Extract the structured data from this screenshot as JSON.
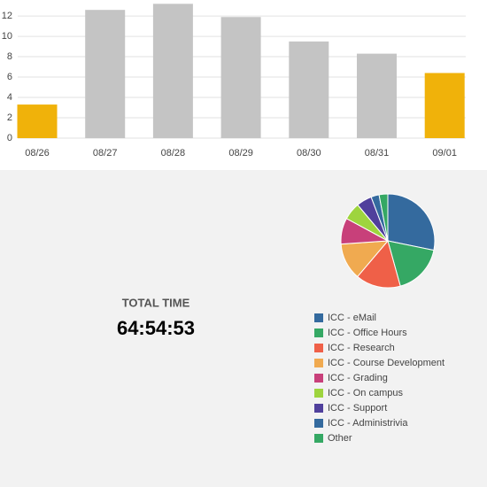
{
  "chart_data": [
    {
      "type": "bar",
      "categories": [
        "08/26",
        "08/27",
        "08/28",
        "08/29",
        "08/30",
        "08/31",
        "09/01"
      ],
      "values": [
        3.3,
        12.6,
        13.2,
        11.9,
        9.5,
        8.3,
        6.4
      ],
      "colors": [
        "#f0b20a",
        "#c4c4c4",
        "#c4c4c4",
        "#c4c4c4",
        "#c4c4c4",
        "#c4c4c4",
        "#f0b20a"
      ],
      "ylim": [
        0,
        13.4
      ],
      "yticks": [
        0,
        2,
        4,
        6,
        8,
        10,
        12
      ],
      "grid": true
    },
    {
      "type": "pie",
      "categories": [
        "ICC - eMail",
        "ICC - Office Hours",
        "ICC - Research",
        "ICC - Course Development",
        "ICC - Grading",
        "ICC - On campus",
        "ICC - Support",
        "ICC - Administrivia",
        "Other"
      ],
      "values": [
        28.2,
        17.5,
        15.5,
        12.7,
        9,
        6,
        5.3,
        2.8,
        3
      ],
      "colors": [
        "#346a9e",
        "#35a864",
        "#ef6048",
        "#f0aa50",
        "#c8407a",
        "#9ed43e",
        "#50409c",
        "#346a9e",
        "#35a864"
      ],
      "legend": "bottom"
    }
  ],
  "summary": {
    "label": "TOTAL TIME",
    "value": "64:54:53"
  }
}
